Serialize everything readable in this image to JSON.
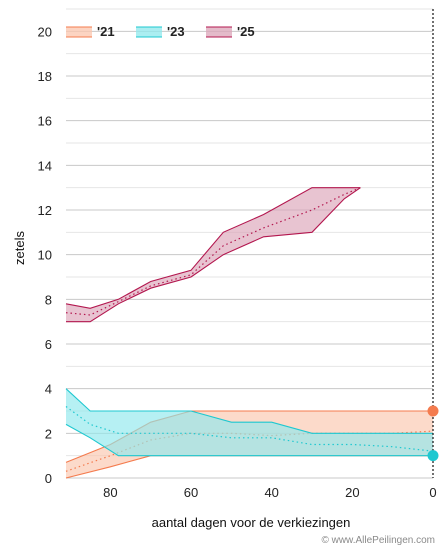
{
  "credit": "© www.AllePeilingen.com",
  "chart_data": {
    "type": "area",
    "title": "",
    "xlabel": "aantal dagen voor de verkiezingen",
    "ylabel": "zetels",
    "xlim": [
      91,
      0
    ],
    "ylim": [
      0,
      21
    ],
    "x_ticks": [
      80,
      60,
      40,
      20,
      0
    ],
    "y_ticks": [
      0,
      2,
      4,
      6,
      8,
      10,
      12,
      14,
      16,
      18,
      20
    ],
    "grid": true,
    "legend_position": "top-left",
    "series": [
      {
        "name": "'21",
        "color": "#f47b4e",
        "fill": "#fbc6ae",
        "x": [
          91,
          80,
          70,
          60,
          50,
          40,
          30,
          20,
          10,
          0
        ],
        "low": [
          0,
          0.5,
          1,
          1,
          1,
          1,
          1,
          1,
          1,
          1
        ],
        "high": [
          0.7,
          1.5,
          2.5,
          3,
          3,
          3,
          3,
          3,
          3,
          3
        ],
        "mid": [
          0.3,
          1,
          1.7,
          2,
          2,
          1.9,
          2,
          2,
          2,
          2.1
        ],
        "end_value": 3
      },
      {
        "name": "'23",
        "color": "#1ec8d0",
        "fill": "#8fe8ec",
        "x": [
          91,
          85,
          78,
          70,
          60,
          50,
          40,
          30,
          20,
          10,
          0
        ],
        "low": [
          2.4,
          1.8,
          1,
          1,
          1,
          1,
          1,
          1,
          1,
          1,
          1
        ],
        "high": [
          4,
          3,
          3,
          3,
          3,
          2.5,
          2.5,
          2,
          2,
          2,
          2
        ],
        "mid": [
          3.2,
          2.4,
          2,
          2,
          2,
          1.8,
          1.8,
          1.5,
          1.5,
          1.4,
          1.2
        ],
        "end_value": 1
      },
      {
        "name": "'25",
        "color": "#b3174f",
        "fill": "#dba4b8",
        "x": [
          91,
          85,
          78,
          70,
          60,
          52,
          42,
          30,
          22,
          18
        ],
        "low": [
          7,
          7,
          7.8,
          8.5,
          9,
          10,
          10.8,
          11,
          12.5,
          13
        ],
        "high": [
          7.8,
          7.6,
          8,
          8.8,
          9.3,
          11,
          11.8,
          13,
          13,
          13
        ],
        "mid": [
          7.4,
          7.3,
          7.9,
          8.6,
          9.1,
          10.4,
          11.2,
          12,
          12.7,
          13
        ]
      }
    ]
  }
}
